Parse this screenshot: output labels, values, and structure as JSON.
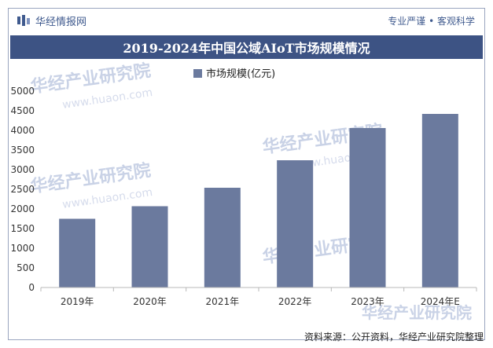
{
  "header": {
    "brand": "华经情报网",
    "slogan": "专业严谨 • 客观科学"
  },
  "watermark": {
    "text": "华经产业研究院",
    "url": "www.huaon.com"
  },
  "chart_data": {
    "type": "bar",
    "title": "2019-2024年中国公域AIoT市场规模情况",
    "categories": [
      "2019年",
      "2020年",
      "2021年",
      "2022年",
      "2023年",
      "2024年E"
    ],
    "series": [
      {
        "name": "市场规模(亿元)",
        "values": [
          1750,
          2070,
          2540,
          3240,
          4060,
          4420
        ]
      }
    ],
    "ylim": [
      0,
      5000
    ],
    "yticks": [
      0,
      500,
      1000,
      1500,
      2000,
      2500,
      3000,
      3500,
      4000,
      4500,
      5000
    ],
    "xlabel": "",
    "ylabel": "",
    "legend_position": "top",
    "grid": false,
    "colors": {
      "bar": "#6b7a9e",
      "title_bg": "#3d5384",
      "brand": "#3f5a8e"
    }
  },
  "source": "资料来源：公开资料，华经产业研究院整理"
}
